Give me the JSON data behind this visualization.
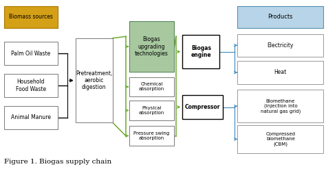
{
  "title": "Figure 1. Biogas supply chain",
  "biomass_label": "Biomass sources",
  "biomass_sources": [
    "Palm Oil Waste",
    "Household\nFood Waste",
    "Animal Manure"
  ],
  "pretreatment_label": "Pretreatment,\naerobic\ndigestion",
  "upgrading_label": "Biogas\nupgrading\ntechnologies",
  "tech_labels": [
    "Chemical\nabsorption",
    "Physical\nabsorption",
    "Pressure swing\nabsorption"
  ],
  "engine_label": "Biogas\nengine",
  "compressor_label": "Compressor",
  "products_header": "Products",
  "products_engine": [
    "Electricity",
    "Heat"
  ],
  "products_compressor": [
    "Biomethane\n(injection into\nnatural gas grid)",
    "Compressed\nbiomethane\n(CBM)"
  ],
  "color_biomass_header": "#D4A017",
  "color_products_header": "#B8D4E8",
  "color_upgrading_box": "#A8C8A0",
  "color_green": "#6AAA2A",
  "color_blue": "#4A90C0",
  "color_black": "#000000",
  "color_gray_border": "#888888",
  "color_white": "#FFFFFF"
}
